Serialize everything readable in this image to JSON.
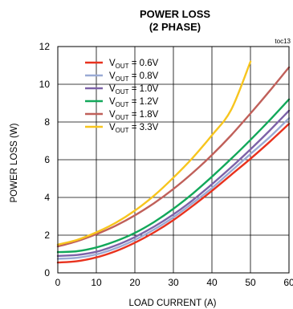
{
  "chart_data": {
    "type": "line",
    "title_line1": "POWER LOSS",
    "title_line2": "(2 PHASE)",
    "tag": "toc13",
    "xlabel": "LOAD CURRENT (A)",
    "ylabel": "POWER LOSS (W)",
    "xlim": [
      0,
      60
    ],
    "ylim": [
      0,
      12
    ],
    "xticks": [
      "0",
      "10",
      "20",
      "30",
      "40",
      "50",
      "60"
    ],
    "yticks": [
      "0",
      "2",
      "4",
      "6",
      "8",
      "10",
      "12"
    ],
    "grid": true,
    "legend_position": "top-left",
    "series": [
      {
        "name": "= 0.6V",
        "label_main": "V",
        "label_sub": "OUT",
        "label_value": " = 0.6V",
        "color": "#e8321e",
        "x": [
          0,
          5,
          10,
          15,
          20,
          25,
          30,
          35,
          40,
          45,
          50,
          55,
          60
        ],
        "y": [
          0.55,
          0.62,
          0.82,
          1.15,
          1.6,
          2.15,
          2.8,
          3.55,
          4.35,
          5.2,
          6.05,
          6.95,
          7.9
        ]
      },
      {
        "name": "= 0.8V",
        "label_main": "V",
        "label_sub": "OUT",
        "label_value": " = 0.8V",
        "color": "#9aaad4",
        "x": [
          0,
          5,
          10,
          15,
          20,
          25,
          30,
          35,
          40,
          45,
          50,
          55,
          60
        ],
        "y": [
          0.75,
          0.8,
          0.98,
          1.3,
          1.75,
          2.3,
          2.95,
          3.7,
          4.5,
          5.4,
          6.3,
          7.2,
          8.2
        ]
      },
      {
        "name": "= 1.0V",
        "label_main": "V",
        "label_sub": "OUT",
        "label_value": " = 1.0V",
        "color": "#7d62a8",
        "x": [
          0,
          5,
          10,
          15,
          20,
          25,
          30,
          35,
          40,
          45,
          50,
          55,
          60
        ],
        "y": [
          0.9,
          0.95,
          1.12,
          1.45,
          1.9,
          2.45,
          3.1,
          3.85,
          4.7,
          5.6,
          6.55,
          7.55,
          8.6
        ]
      },
      {
        "name": "= 1.2V",
        "label_main": "V",
        "label_sub": "OUT",
        "label_value": " = 1.2V",
        "color": "#12a85a",
        "x": [
          0,
          5,
          10,
          15,
          20,
          25,
          30,
          35,
          40,
          45,
          50,
          55,
          60
        ],
        "y": [
          1.1,
          1.15,
          1.35,
          1.68,
          2.12,
          2.7,
          3.4,
          4.2,
          5.1,
          6.05,
          7.05,
          8.1,
          9.2
        ]
      },
      {
        "name": "= 1.8V",
        "label_main": "V",
        "label_sub": "OUT",
        "label_value": " = 1.8V",
        "color": "#c0605a",
        "x": [
          0,
          5,
          10,
          15,
          20,
          25,
          30,
          35,
          40,
          45,
          50,
          55,
          60
        ],
        "y": [
          1.4,
          1.68,
          2.05,
          2.5,
          3.05,
          3.7,
          4.45,
          5.3,
          6.25,
          7.3,
          8.45,
          9.65,
          10.9
        ]
      },
      {
        "name": "= 3.3V",
        "label_main": "V",
        "label_sub": "OUT",
        "label_value": " = 3.3V",
        "color": "#f7c51e",
        "x": [
          0,
          5,
          10,
          15,
          20,
          25,
          30,
          35,
          40,
          45,
          50
        ],
        "y": [
          1.5,
          1.75,
          2.15,
          2.65,
          3.3,
          4.1,
          5.05,
          6.1,
          7.3,
          8.65,
          11.2
        ]
      }
    ]
  }
}
